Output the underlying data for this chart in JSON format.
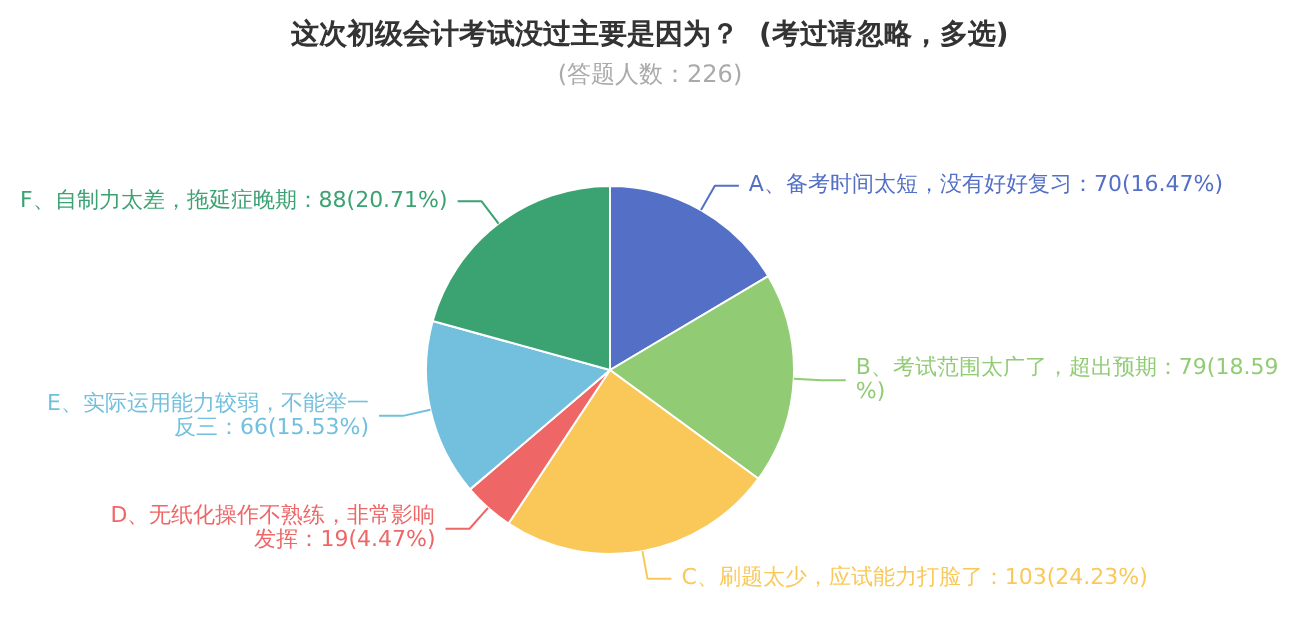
{
  "chart_data": {
    "type": "pie",
    "title": "这次初级会计考试没过主要是因为？  (考过请忽略，多选)",
    "subtitle": "(答题人数：226)",
    "categories": [
      "A、备考时间太短，没有好好复习",
      "B、考试范围太广了，超出预期",
      "C、刷题太少，应试能力打脸了",
      "D、无纸化操作不熟练，非常影响发挥",
      "E、实际运用能力较弱，不能举一反三",
      "F、自制力太差，拖延症晚期"
    ],
    "values": [
      70,
      79,
      103,
      19,
      66,
      88
    ],
    "value_labels": [
      "70(16.47%)",
      "79(18.59%)",
      "103(24.23%)",
      "19(4.47%)",
      "66(15.53%)",
      "88(20.71%)"
    ],
    "colors": [
      "#5470c6",
      "#91cc75",
      "#fac858",
      "#ee6666",
      "#73c0de",
      "#3ba272"
    ],
    "legend": false
  }
}
